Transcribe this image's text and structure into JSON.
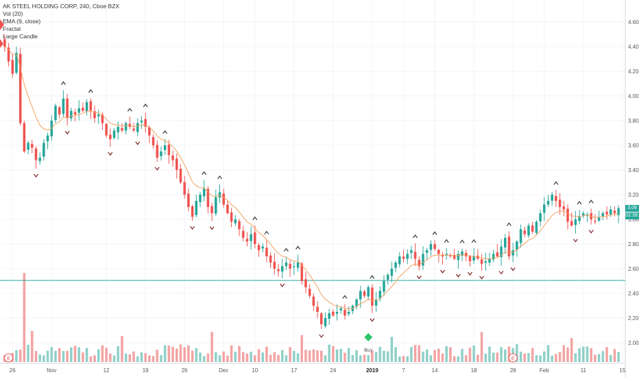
{
  "legend": {
    "symbol": "AK STEEL HOLDING CORP, 240, Cboe BZX",
    "vol": "Vol (20)",
    "ema": "EMA (9, close)",
    "fractal": "Fractal",
    "large_candle": "Large Candle"
  },
  "price_tags": {
    "last_price": "3.09",
    "countdown": "02:39:"
  },
  "markers": {
    "buy_label": "Buy",
    "earnings_label": "E"
  },
  "colors": {
    "up": "#26a69a",
    "down": "#ef5350",
    "vol_up": "#8fd0c8",
    "vol_down": "#f4a3a3",
    "ema": "#f5a15c",
    "hline": "#26a69a",
    "buy": "#2cc36b"
  },
  "chart_data": {
    "type": "candlestick",
    "title": "AK STEEL HOLDING CORP, 240, Cboe BZX",
    "interval": "240",
    "y_axis": {
      "ylim": [
        1.9,
        4.7
      ],
      "ticks": [
        "4.60",
        "4.40",
        "4.20",
        "4.00",
        "3.80",
        "3.60",
        "3.40",
        "3.20",
        "3.00",
        "2.80",
        "2.60",
        "2.40",
        "2.20",
        "2.00"
      ],
      "position": "right"
    },
    "x_axis": {
      "ticks": [
        {
          "label": "26",
          "i": 2
        },
        {
          "label": "Nov",
          "i": 12
        },
        {
          "label": "12",
          "i": 26
        },
        {
          "label": "19",
          "i": 36
        },
        {
          "label": "26",
          "i": 46
        },
        {
          "label": "Dec",
          "i": 56
        },
        {
          "label": "10",
          "i": 64
        },
        {
          "label": "17",
          "i": 74
        },
        {
          "label": "24",
          "i": 84
        },
        {
          "label": "2019",
          "i": 94,
          "bold": true
        },
        {
          "label": "7",
          "i": 102
        },
        {
          "label": "14",
          "i": 110
        },
        {
          "label": "18",
          "i": 120
        },
        {
          "label": "28",
          "i": 130
        },
        {
          "label": "Feb",
          "i": 138
        },
        {
          "label": "11",
          "i": 148
        },
        {
          "label": "15",
          "i": 158
        }
      ]
    },
    "horizontal_line": 2.505,
    "close": [
      4.4,
      4.28,
      4.18,
      4.35,
      3.78,
      3.55,
      3.62,
      3.58,
      3.48,
      3.5,
      3.62,
      3.68,
      3.8,
      3.92,
      3.85,
      3.98,
      3.82,
      3.88,
      3.85,
      3.9,
      3.88,
      3.95,
      3.88,
      3.82,
      3.85,
      3.78,
      3.68,
      3.65,
      3.72,
      3.75,
      3.72,
      3.78,
      3.75,
      3.72,
      3.78,
      3.8,
      3.75,
      3.68,
      3.6,
      3.5,
      3.55,
      3.6,
      3.52,
      3.48,
      3.4,
      3.3,
      3.2,
      3.1,
      3.02,
      3.15,
      3.2,
      3.25,
      3.1,
      3.05,
      3.18,
      3.22,
      3.12,
      3.05,
      2.98,
      3.0,
      2.92,
      2.85,
      2.82,
      2.88,
      2.8,
      2.75,
      2.78,
      2.7,
      2.65,
      2.6,
      2.58,
      2.62,
      2.65,
      2.6,
      2.62,
      2.65,
      2.5,
      2.45,
      2.38,
      2.3,
      2.25,
      2.15,
      2.2,
      2.24,
      2.22,
      2.25,
      2.28,
      2.22,
      2.25,
      2.3,
      2.35,
      2.42,
      2.38,
      2.45,
      2.3,
      2.35,
      2.42,
      2.5,
      2.55,
      2.6,
      2.65,
      2.7,
      2.68,
      2.72,
      2.75,
      2.68,
      2.62,
      2.72,
      2.75,
      2.8,
      2.76,
      2.72,
      2.7,
      2.72,
      2.7,
      2.68,
      2.72,
      2.74,
      2.7,
      2.66,
      2.7,
      2.68,
      2.64,
      2.66,
      2.68,
      2.72,
      2.7,
      2.78,
      2.85,
      2.7,
      2.75,
      2.82,
      2.92,
      2.88,
      2.95,
      2.9,
      2.98,
      3.05,
      3.12,
      3.15,
      3.2,
      3.15,
      3.1,
      3.08,
      2.98,
      2.95,
      3.0,
      3.02,
      3.05,
      3.04,
      3.0,
      2.98,
      3.02,
      3.05,
      3.04,
      3.08,
      3.05,
      3.09
    ]
  }
}
